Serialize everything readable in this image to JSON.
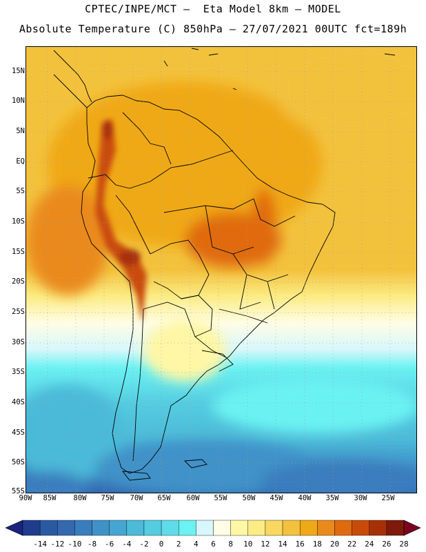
{
  "header": {
    "line1": "CPTEC/INPE/MCT –  Eta Model 8km – MODEL",
    "line2": "Absolute Temperature (C) 850hPa – 27/07/2021 00UTC fct=189h"
  },
  "map": {
    "variable": "Absolute Temperature",
    "units": "C",
    "level": "850hPa",
    "lat_labels": [
      "15N",
      "10N",
      "5N",
      "EQ",
      "5S",
      "10S",
      "15S",
      "20S",
      "25S",
      "30S",
      "35S",
      "40S",
      "45S",
      "50S",
      "55S"
    ],
    "lon_labels": [
      "90W",
      "85W",
      "80W",
      "75W",
      "70W",
      "65W",
      "60W",
      "55W",
      "50W",
      "45W",
      "40W",
      "35W",
      "30W",
      "25W"
    ]
  },
  "legend": {
    "labels": [
      "-14",
      "-12",
      "-10",
      "-8",
      "-6",
      "-4",
      "-2",
      "0",
      "2",
      "4",
      "6",
      "8",
      "10",
      "12",
      "14",
      "16",
      "18",
      "20",
      "22",
      "24",
      "26",
      "28"
    ],
    "colors": [
      "#1f3d8c",
      "#2b5aa3",
      "#3469b0",
      "#3a7dbd",
      "#3f92c8",
      "#46a6d3",
      "#4cbad8",
      "#55cce0",
      "#5fdcea",
      "#6bf2f2",
      "#d6f7fb",
      "#fffde6",
      "#fff7a5",
      "#fcec85",
      "#f8d860",
      "#f3c23d",
      "#f0a916",
      "#ea8a1c",
      "#e06a10",
      "#c94b0a",
      "#a83007",
      "#7e1a0c"
    ],
    "left_cap_color": "#1a237e",
    "right_cap_color": "#7a0020"
  }
}
